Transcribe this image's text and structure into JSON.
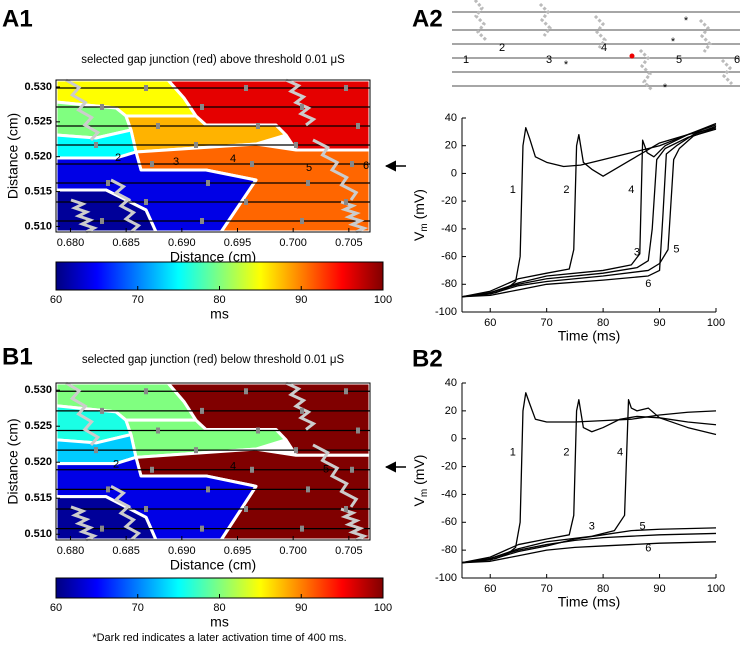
{
  "schematic": {
    "labels": [
      "1",
      "2",
      "3",
      "4",
      "5",
      "6"
    ],
    "asterisks": [
      "*",
      "*",
      "*",
      "*"
    ]
  },
  "chart_data": [
    {
      "type": "map",
      "panel": "A1",
      "title": "selected gap junction (red) above threshold 0.01 μS",
      "xlabel": "Distance (cm)",
      "ylabel": "Distance (cm)",
      "xlim": [
        0.6787,
        0.7069
      ],
      "ylim": [
        0.5092,
        0.531
      ],
      "xticks": [
        {
          "value": 0.68,
          "label": "0.680"
        },
        0.685,
        {
          "value": 0.69,
          "label": "0.690"
        },
        0.695,
        {
          "value": 0.7,
          "label": "0.700"
        },
        0.705
      ],
      "yticks": [
        {
          "value": 0.51,
          "label": "0.510"
        },
        0.515,
        {
          "value": 0.52,
          "label": "0.520"
        },
        0.525,
        {
          "value": 0.53,
          "label": "0.530"
        }
      ],
      "region_values": [
        85,
        80,
        88,
        96,
        75,
        91,
        64,
        61
      ],
      "region_labels": [
        "2",
        "3",
        "4",
        "5",
        "6"
      ],
      "colorbar": {
        "lim": [
          60,
          100
        ],
        "ticks": [
          60,
          70,
          80,
          90,
          100
        ],
        "label": "ms",
        "colormap": "jet"
      }
    },
    {
      "type": "line",
      "panel": "A2",
      "xlabel": "Time (ms)",
      "ylabel": [
        "V",
        "m",
        " (mV)"
      ],
      "xlim": [
        55,
        100
      ],
      "ylim": [
        -100,
        40
      ],
      "xticks": [
        60,
        70,
        80,
        90,
        100
      ],
      "yticks": [
        -100,
        -80,
        -60,
        -40,
        -20,
        0,
        20,
        40
      ],
      "series": [
        {
          "name": "1",
          "color": "#000000",
          "x": [
            55,
            58,
            61,
            63,
            64.5,
            65.3,
            65.8,
            66.3,
            67,
            68,
            70,
            73,
            76,
            80,
            85,
            90,
            95,
            100
          ],
          "values": [
            -89,
            -88,
            -86,
            -83,
            -78,
            -60,
            20,
            33,
            25,
            12,
            8,
            5,
            6,
            10,
            15,
            20,
            28,
            35
          ]
        },
        {
          "name": "2",
          "color": "#000000",
          "x": [
            55,
            60,
            65,
            70,
            74,
            74.8,
            75.3,
            75.7,
            76.5,
            78,
            80,
            85,
            90,
            95,
            100
          ],
          "values": [
            -89,
            -85,
            -76,
            -72,
            -69,
            -55,
            20,
            28,
            8,
            3,
            -2,
            10,
            22,
            28,
            33
          ]
        },
        {
          "name": "3",
          "color": "#000000",
          "x": [
            55,
            60,
            65,
            70,
            80,
            86,
            88,
            88.7,
            89.5,
            91,
            95,
            100
          ],
          "values": [
            -89,
            -86,
            -80,
            -76,
            -72,
            -68,
            -63,
            -40,
            10,
            18,
            26,
            32
          ]
        },
        {
          "name": "4",
          "color": "#000000",
          "x": [
            55,
            60,
            65,
            70,
            80,
            85,
            86.5,
            87,
            87.8,
            89,
            91,
            95,
            100
          ],
          "values": [
            -89,
            -86,
            -79,
            -74,
            -70,
            -66,
            -58,
            24,
            15,
            12,
            20,
            28,
            36
          ]
        },
        {
          "name": "5",
          "color": "#000000",
          "x": [
            55,
            60,
            65,
            70,
            80,
            88,
            90,
            91.5,
            92.5,
            93.5,
            96,
            100
          ],
          "values": [
            -89,
            -87,
            -81,
            -78,
            -74,
            -70,
            -65,
            -55,
            10,
            18,
            27,
            33
          ]
        },
        {
          "name": "6",
          "color": "#000000",
          "x": [
            55,
            60,
            65,
            70,
            80,
            88,
            90,
            90.6,
            91.2,
            93,
            96,
            100
          ],
          "values": [
            -89,
            -88,
            -84,
            -80,
            -77,
            -74,
            -70,
            -30,
            14,
            20,
            28,
            34
          ]
        }
      ]
    },
    {
      "type": "map",
      "panel": "B1",
      "title": "selected gap junction (red) below threshold 0.01 μS",
      "xlabel": "Distance (cm)",
      "ylabel": "Distance (cm)",
      "xlim": [
        0.6787,
        0.7069
      ],
      "ylim": [
        0.5092,
        0.531
      ],
      "xticks": [
        {
          "value": 0.68,
          "label": "0.680"
        },
        0.685,
        {
          "value": 0.69,
          "label": "0.690"
        },
        0.695,
        {
          "value": 0.7,
          "label": "0.700"
        },
        0.705
      ],
      "yticks": [
        {
          "value": 0.51,
          "label": "0.510"
        },
        0.515,
        {
          "value": 0.52,
          "label": "0.520"
        },
        0.525,
        {
          "value": 0.53,
          "label": "0.530"
        }
      ],
      "region_values": [
        80,
        76,
        80,
        400,
        73,
        400,
        64,
        61
      ],
      "region_labels": [
        "2",
        "4",
        "5"
      ],
      "colorbar": {
        "lim": [
          60,
          100
        ],
        "ticks": [
          60,
          70,
          80,
          90,
          100
        ],
        "label": "ms",
        "colormap": "jet"
      },
      "note": "*Dark red indicates a later activation time of 400 ms."
    },
    {
      "type": "line",
      "panel": "B2",
      "xlabel": "Time (ms)",
      "ylabel": [
        "V",
        "m",
        " (mV)"
      ],
      "xlim": [
        55,
        100
      ],
      "ylim": [
        -100,
        40
      ],
      "xticks": [
        60,
        70,
        80,
        90,
        100
      ],
      "yticks": [
        -100,
        -80,
        -60,
        -40,
        -20,
        0,
        20,
        40
      ],
      "series": [
        {
          "name": "1",
          "color": "#000000",
          "x": [
            55,
            58,
            61,
            63,
            64.5,
            65.3,
            65.8,
            66.3,
            67,
            68,
            70,
            75,
            80,
            85,
            90,
            95,
            100
          ],
          "values": [
            -89,
            -88,
            -86,
            -83,
            -78,
            -60,
            20,
            33,
            25,
            14,
            12,
            12,
            13,
            14,
            17,
            19,
            20
          ]
        },
        {
          "name": "2",
          "color": "#000000",
          "x": [
            55,
            60,
            65,
            70,
            74,
            74.8,
            75.3,
            75.7,
            76.5,
            78,
            80,
            83,
            86,
            90,
            95,
            100
          ],
          "values": [
            -89,
            -85,
            -76,
            -72,
            -69,
            -55,
            20,
            28,
            8,
            5,
            8,
            14,
            16,
            15,
            12,
            10
          ]
        },
        {
          "name": "3",
          "color": "#000000",
          "x": [
            55,
            60,
            65,
            70,
            75,
            80,
            85,
            90,
            100
          ],
          "values": [
            -89,
            -86,
            -80,
            -76,
            -73,
            -71,
            -70,
            -69,
            -68
          ]
        },
        {
          "name": "4",
          "color": "#000000",
          "x": [
            55,
            60,
            65,
            70,
            78,
            82,
            83.8,
            84.5,
            85,
            86,
            88,
            90,
            95,
            100
          ],
          "values": [
            -89,
            -86,
            -79,
            -74,
            -70,
            -66,
            -55,
            28,
            22,
            20,
            22,
            15,
            8,
            3
          ]
        },
        {
          "name": "5",
          "color": "#000000",
          "x": [
            55,
            60,
            65,
            70,
            75,
            80,
            85,
            90,
            100
          ],
          "values": [
            -89,
            -87,
            -81,
            -77,
            -72,
            -69,
            -66,
            -65,
            -64
          ]
        },
        {
          "name": "6",
          "color": "#000000",
          "x": [
            55,
            60,
            65,
            70,
            75,
            80,
            85,
            90,
            100
          ],
          "values": [
            -89,
            -88,
            -84,
            -80,
            -78,
            -77,
            -76,
            -75,
            -74
          ]
        }
      ]
    }
  ]
}
